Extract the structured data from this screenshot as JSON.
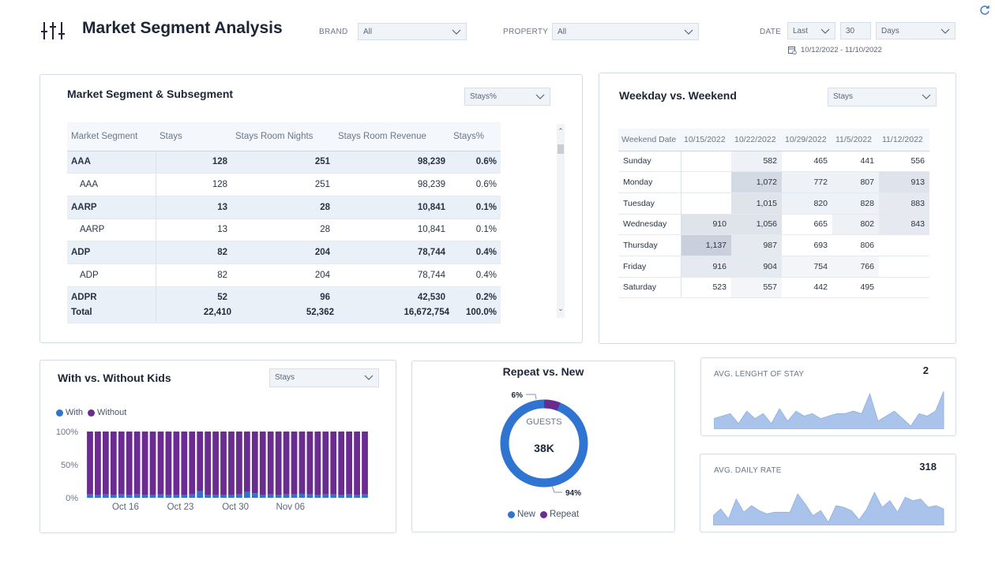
{
  "header": {
    "title": "Market Segment Analysis",
    "brand_label": "BRAND",
    "brand_value": "All",
    "property_label": "PROPERTY",
    "property_value": "All",
    "date_label": "DATE",
    "date_mode": "Last",
    "date_count": "30",
    "date_unit": "Days",
    "date_range": "10/12/2022 - 11/10/2022"
  },
  "segment": {
    "title": "Market Segment & Subsegment",
    "metric": "Stays%",
    "columns": [
      "Market Segment",
      "Stays",
      "Stays Room Nights",
      "Stays Room Revenue",
      "Stays%"
    ],
    "rows": [
      {
        "name": "AAA",
        "stays": "128",
        "nights": "251",
        "revenue": "98,239",
        "pct": "0.6%",
        "bold": true
      },
      {
        "name": "AAA",
        "stays": "128",
        "nights": "251",
        "revenue": "98,239",
        "pct": "0.6%",
        "bold": false
      },
      {
        "name": "AARP",
        "stays": "13",
        "nights": "28",
        "revenue": "10,841",
        "pct": "0.1%",
        "bold": true
      },
      {
        "name": "AARP",
        "stays": "13",
        "nights": "28",
        "revenue": "10,841",
        "pct": "0.1%",
        "bold": false
      },
      {
        "name": "ADP",
        "stays": "82",
        "nights": "204",
        "revenue": "78,744",
        "pct": "0.4%",
        "bold": true
      },
      {
        "name": "ADP",
        "stays": "82",
        "nights": "204",
        "revenue": "78,744",
        "pct": "0.4%",
        "bold": false
      },
      {
        "name": "ADPR",
        "stays": "52",
        "nights": "96",
        "revenue": "42,530",
        "pct": "0.2%",
        "bold": true
      }
    ],
    "total": {
      "name": "Total",
      "stays": "22,410",
      "nights": "52,362",
      "revenue": "16,672,754",
      "pct": "100.0%"
    }
  },
  "weekday": {
    "title": "Weekday vs. Weekend",
    "metric": "Stays",
    "columns": [
      "Weekend Date",
      "10/15/2022",
      "10/22/2022",
      "10/29/2022",
      "11/5/2022",
      "11/12/2022"
    ],
    "rows": [
      {
        "day": "Sunday",
        "values": [
          "",
          "582",
          "465",
          "441",
          "556"
        ]
      },
      {
        "day": "Monday",
        "values": [
          "",
          "1,072",
          "772",
          "807",
          "913"
        ]
      },
      {
        "day": "Tuesday",
        "values": [
          "",
          "1,015",
          "820",
          "828",
          "883"
        ]
      },
      {
        "day": "Wednesday",
        "values": [
          "910",
          "1,056",
          "665",
          "802",
          "843"
        ]
      },
      {
        "day": "Thursday",
        "values": [
          "1,137",
          "987",
          "693",
          "806",
          ""
        ]
      },
      {
        "day": "Friday",
        "values": [
          "916",
          "904",
          "754",
          "766",
          ""
        ]
      },
      {
        "day": "Saturday",
        "values": [
          "523",
          "557",
          "442",
          "495",
          ""
        ]
      }
    ]
  },
  "kids": {
    "title": "With vs. Without Kids",
    "metric": "Stays",
    "legend_with": "With",
    "legend_without": "Without"
  },
  "repeat": {
    "title": "Repeat vs. New",
    "center_label": "GUESTS",
    "center_value": "38K",
    "repeat_pct_label": "6%",
    "new_pct_label": "94%",
    "legend_new": "New",
    "legend_repeat": "Repeat"
  },
  "los": {
    "label": "AVG. LENGHT OF STAY",
    "value": "2"
  },
  "adr": {
    "label": "AVG. DAILY RATE",
    "value": "318"
  },
  "colors": {
    "with": "#2f74d0",
    "without": "#6a2c91",
    "accent": "#a9c3ea",
    "ring_new": "#2f74d0",
    "ring_repeat": "#6a2c91"
  },
  "chart_data": [
    {
      "type": "bar",
      "title": "With vs. Without Kids",
      "stacked": true,
      "x_ticks": [
        "Oct 16",
        "Oct 23",
        "Oct 30",
        "Nov 06"
      ],
      "y_ticks": [
        "100%",
        "50%",
        "0%"
      ],
      "ylim": [
        0,
        100
      ],
      "series": [
        {
          "name": "With",
          "values": [
            5,
            4,
            5,
            4,
            5,
            4,
            5,
            4,
            4,
            5,
            4,
            4,
            4,
            5,
            10,
            4,
            4,
            4,
            4,
            5,
            9,
            7,
            4,
            5,
            4,
            5,
            5,
            6,
            5,
            4,
            5,
            5,
            4,
            5,
            4,
            5
          ]
        },
        {
          "name": "Without",
          "values": [
            95,
            96,
            95,
            96,
            95,
            96,
            95,
            96,
            96,
            95,
            96,
            96,
            96,
            95,
            90,
            96,
            96,
            96,
            96,
            95,
            91,
            93,
            96,
            95,
            96,
            95,
            95,
            94,
            95,
            96,
            95,
            95,
            96,
            95,
            96,
            95
          ]
        }
      ]
    },
    {
      "type": "pie",
      "title": "Repeat vs. New",
      "categories": [
        "New",
        "Repeat"
      ],
      "values": [
        94,
        6
      ]
    },
    {
      "type": "area",
      "title": "AVG. LENGHT OF STAY",
      "values": [
        2.2,
        2.3,
        2.4,
        2.0,
        2.5,
        2.2,
        2.4,
        2.0,
        2.6,
        2.1,
        2.5,
        2.3,
        2.4,
        2.2,
        2.3,
        2.4,
        2.4,
        2.5,
        2.4,
        3.2,
        2.1,
        2.3,
        2.5,
        2.2,
        1.9,
        2.4,
        2.3,
        2.5,
        3.3
      ]
    },
    {
      "type": "area",
      "title": "AVG. DAILY RATE",
      "values": [
        310,
        318,
        306,
        330,
        314,
        322,
        316,
        312,
        314,
        314,
        314,
        336,
        324,
        310,
        316,
        302,
        322,
        320,
        316,
        305,
        318,
        338,
        320,
        328,
        314,
        332,
        328,
        330,
        320,
        322,
        318
      ]
    }
  ]
}
